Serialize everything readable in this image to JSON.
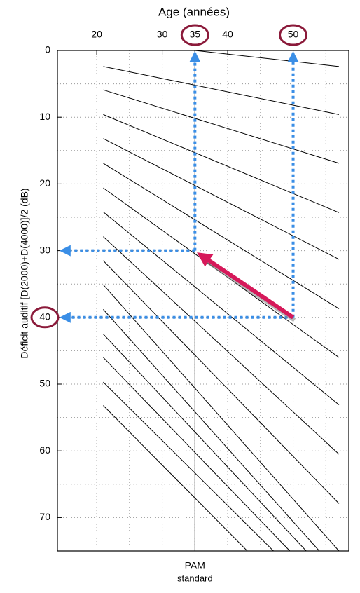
{
  "chart_data": {
    "type": "nomogram",
    "title": "Age (années)",
    "y_label": "Déficit auditif [D(2000)+D(4000)]/2  (dB)",
    "xlim": [
      14,
      58.5
    ],
    "ylim": [
      0,
      75
    ],
    "xticks": [
      20,
      30,
      35,
      40,
      50
    ],
    "yticks": [
      0,
      10,
      20,
      30,
      40,
      50,
      60,
      70
    ],
    "minor_xticks": [
      25,
      45,
      55
    ],
    "minor_yticks": [
      5,
      15,
      25,
      35,
      45,
      55,
      65,
      75
    ],
    "y_reversed": true,
    "grid": true,
    "curves": [
      {
        "x": [
          35,
          57
        ],
        "y": [
          0,
          2.4
        ]
      },
      {
        "x": [
          21,
          57
        ],
        "y": [
          2.4,
          9.6
        ]
      },
      {
        "x": [
          21,
          57
        ],
        "y": [
          5.9,
          16.9
        ]
      },
      {
        "x": [
          21,
          57
        ],
        "y": [
          9.6,
          24.3
        ]
      },
      {
        "x": [
          21,
          57
        ],
        "y": [
          13.2,
          31.3
        ]
      },
      {
        "x": [
          21,
          57
        ],
        "y": [
          16.9,
          38.7
        ]
      },
      {
        "x": [
          21,
          57
        ],
        "y": [
          20.6,
          46
        ]
      },
      {
        "x": [
          21,
          57
        ],
        "y": [
          24.2,
          53.1
        ]
      },
      {
        "x": [
          21,
          57
        ],
        "y": [
          27.9,
          60.5
        ]
      },
      {
        "x": [
          21,
          57
        ],
        "y": [
          31.5,
          67.9
        ]
      },
      {
        "x": [
          21,
          57
        ],
        "y": [
          35.1,
          75
        ]
      },
      {
        "x": [
          21,
          54
        ],
        "y": [
          38.8,
          75
        ]
      },
      {
        "x": [
          21,
          52
        ],
        "y": [
          42.5,
          75
        ]
      },
      {
        "x": [
          21,
          49.5
        ],
        "y": [
          46,
          75
        ]
      },
      {
        "x": [
          21,
          47
        ],
        "y": [
          49.7,
          75
        ]
      },
      {
        "x": [
          21,
          43
        ],
        "y": [
          53.2,
          75
        ]
      }
    ],
    "reference_line": {
      "x": 35,
      "label_lines": [
        "PAM",
        "standard"
      ]
    },
    "arrow": {
      "from": {
        "x": 50,
        "y": 40
      },
      "to": {
        "x": 35,
        "y": 30
      }
    },
    "colors": {
      "curve": "#000000",
      "guide": "#3a8ee6",
      "arrow": "#d6195a",
      "circle": "#8b1a3a"
    }
  }
}
